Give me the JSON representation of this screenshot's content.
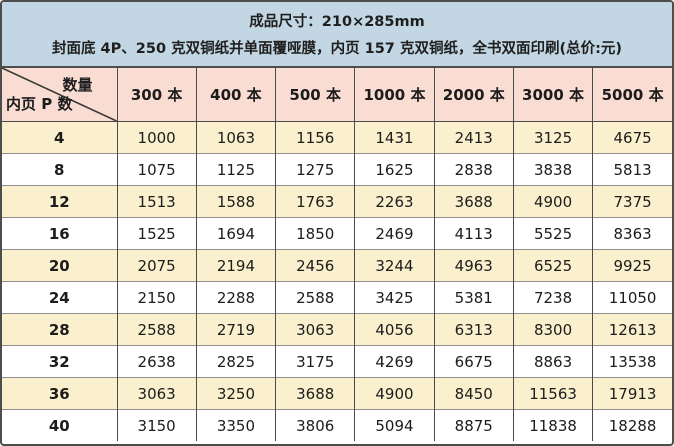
{
  "banner": {
    "line1": "成品尺寸：210×285mm",
    "line2": "封面底 4P、250 克双铜纸并单面覆哑膜，内页 157 克双铜纸，全书双面印刷(总价:元)"
  },
  "chart_data": {
    "type": "table",
    "title": "成品尺寸：210×285mm",
    "subtitle": "封面底 4P、250 克双铜纸并单面覆哑膜，内页 157 克双铜纸，全书双面印刷(总价:元)",
    "corner": {
      "top_label": "数量",
      "bottom_label": "内页 P 数"
    },
    "columns": [
      "300 本",
      "400 本",
      "500 本",
      "1000 本",
      "2000 本",
      "3000 本",
      "5000 本"
    ],
    "rows": [
      {
        "pages": "4",
        "prices": [
          1000,
          1063,
          1156,
          1431,
          2413,
          3125,
          4675
        ]
      },
      {
        "pages": "8",
        "prices": [
          1075,
          1125,
          1275,
          1625,
          2838,
          3838,
          5813
        ]
      },
      {
        "pages": "12",
        "prices": [
          1513,
          1588,
          1763,
          2263,
          3688,
          4900,
          7375
        ]
      },
      {
        "pages": "16",
        "prices": [
          1525,
          1694,
          1850,
          2469,
          4113,
          5525,
          8363
        ]
      },
      {
        "pages": "20",
        "prices": [
          2075,
          2194,
          2456,
          3244,
          4963,
          6525,
          9925
        ]
      },
      {
        "pages": "24",
        "prices": [
          2150,
          2288,
          2588,
          3425,
          5381,
          7238,
          11050
        ]
      },
      {
        "pages": "28",
        "prices": [
          2588,
          2719,
          3063,
          4056,
          6313,
          8300,
          12613
        ]
      },
      {
        "pages": "32",
        "prices": [
          2638,
          2825,
          3175,
          4269,
          6675,
          8863,
          13538
        ]
      },
      {
        "pages": "36",
        "prices": [
          3063,
          3250,
          3688,
          4900,
          8450,
          11563,
          17913
        ]
      },
      {
        "pages": "40",
        "prices": [
          3150,
          3350,
          3806,
          5094,
          8875,
          11838,
          18288
        ]
      }
    ]
  },
  "colors": {
    "banner_bg": "#c2d7e3",
    "header_row_bg": "#f9dcd2",
    "alt_row_bg": "#fbf0cd",
    "row_bg": "#ffffff",
    "frame_border": "#4d4d4d",
    "grid_vertical": "#4a4a4a",
    "grid_horizontal": "#8f8f8f"
  }
}
